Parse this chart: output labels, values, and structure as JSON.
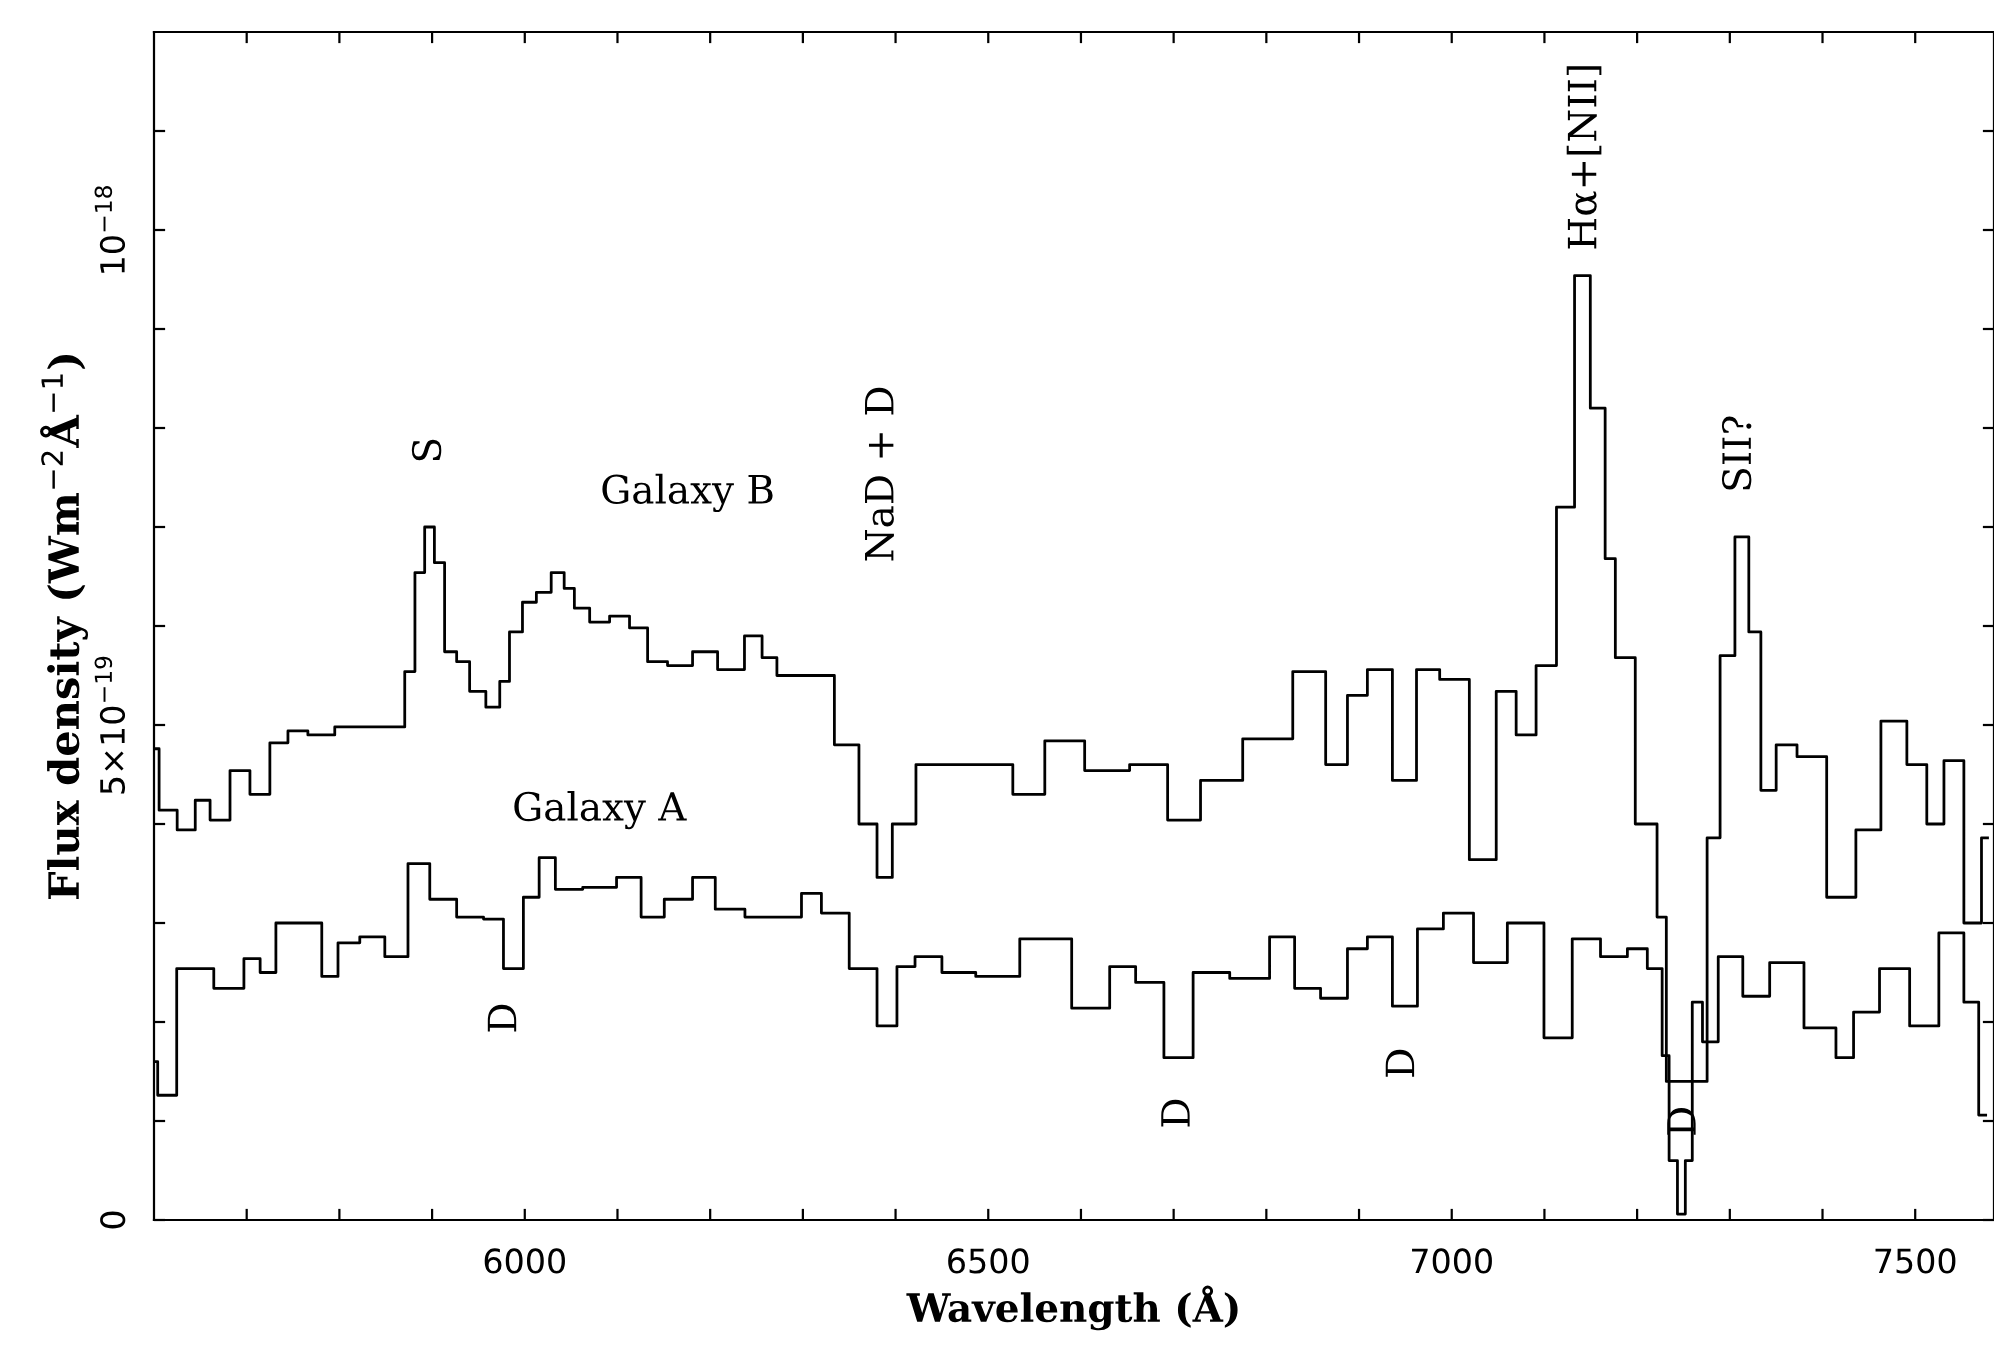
{
  "chart_data": {
    "type": "step",
    "xlabel": "Wavelength (Å)",
    "ylabel": "Flux density (Wm$^{−2}$Å$^{−1}$)",
    "xlim": [
      5600,
      7585
    ],
    "ylim": [
      0,
      1.2e-18
    ],
    "xticks": [
      {
        "value": 5700,
        "label": null
      },
      {
        "value": 5800,
        "label": null
      },
      {
        "value": 5900,
        "label": null
      },
      6000,
      {
        "value": 6100,
        "label": null
      },
      {
        "value": 6200,
        "label": null
      },
      {
        "value": 6300,
        "label": null
      },
      {
        "value": 6400,
        "label": null
      },
      6500,
      {
        "value": 6600,
        "label": null
      },
      {
        "value": 6700,
        "label": null
      },
      {
        "value": 6800,
        "label": null
      },
      {
        "value": 6900,
        "label": null
      },
      7000,
      {
        "value": 7100,
        "label": null
      },
      {
        "value": 7200,
        "label": null
      },
      {
        "value": 7300,
        "label": null
      },
      {
        "value": 7400,
        "label": null
      },
      7500
    ],
    "yticks": [
      {
        "value": 0,
        "label": "0"
      },
      {
        "value": 1e-19,
        "label": null
      },
      {
        "value": 2e-19,
        "label": null
      },
      {
        "value": 3e-19,
        "label": null
      },
      {
        "value": 4e-19,
        "label": null
      },
      {
        "value": 5e-19,
        "label": "5×10$^{−19}$"
      },
      {
        "value": 6e-19,
        "label": null
      },
      {
        "value": 7e-19,
        "label": null
      },
      {
        "value": 8e-19,
        "label": null
      },
      {
        "value": 9e-19,
        "label": null
      },
      {
        "value": 1e-18,
        "label": "10$^{−18}$"
      },
      {
        "value": 1.1e-18,
        "label": null
      }
    ],
    "grid": false,
    "series": [
      {
        "color": "#000000",
        "x": [
          5600,
          5611,
          5639,
          5650,
          5671,
          5693,
          5714,
          5736,
          5753,
          5779,
          5811,
          5865,
          5876,
          5887,
          5897,
          5908,
          5919,
          5934,
          5947,
          5969,
          5977,
          5990,
          6005,
          6020,
          6037,
          6048,
          6059,
          6081,
          6102,
          6124,
          6141,
          6167,
          6195,
          6221,
          6253,
          6259,
          6285,
          6318,
          6350,
          6371,
          6389,
          6404,
          6440,
          6505,
          6548,
          6574,
          6634,
          6671,
          6716,
          6742,
          6807,
          6850,
          6878,
          6897,
          6921,
          6951,
          6973,
          7001,
          7037,
          7059,
          7080,
          7102,
          7124,
          7141,
          7158,
          7173,
          7180,
          7216,
          7227,
          7236,
          7270,
          7281,
          7298,
          7313,
          7328,
          7339,
          7361,
          7384,
          7425,
          7447,
          7479,
          7503,
          7522,
          7540,
          7565,
          7578
        ],
        "values": [
          4.76e-19,
          4.14e-19,
          3.94e-19,
          4.24e-19,
          4.04e-19,
          4.54e-19,
          4.3e-19,
          4.82e-19,
          4.94e-19,
          4.9e-19,
          4.98e-19,
          4.98e-19,
          5.54e-19,
          6.54e-19,
          7e-19,
          6.64e-19,
          5.74e-19,
          5.64e-19,
          5.34e-19,
          5.18e-19,
          5.44e-19,
          5.94e-19,
          6.24e-19,
          6.34e-19,
          6.54e-19,
          6.38e-19,
          6.18e-19,
          6.04e-19,
          6.1e-19,
          5.98e-19,
          5.64e-19,
          5.6e-19,
          5.74e-19,
          5.56e-19,
          5.9e-19,
          5.68e-19,
          5.5e-19,
          5.5e-19,
          4.8e-19,
          4e-19,
          3.46e-19,
          4e-19,
          4.6e-19,
          4.6e-19,
          4.3e-19,
          4.84e-19,
          4.54e-19,
          4.6e-19,
          4.04e-19,
          4.44e-19,
          4.86e-19,
          5.54e-19,
          4.6e-19,
          5.3e-19,
          5.56e-19,
          4.44e-19,
          5.56e-19,
          5.46e-19,
          3.64e-19,
          5.34e-19,
          4.9e-19,
          5.6e-19,
          7.2e-19,
          9.54e-19,
          8.2e-19,
          6.68e-19,
          5.68e-19,
          4e-19,
          3.06e-19,
          1.4e-19,
          1.4e-19,
          3.86e-19,
          5.7e-19,
          6.9e-19,
          5.94e-19,
          4.34e-19,
          4.8e-19,
          4.68e-19,
          3.26e-19,
          3.94e-19,
          5.04e-19,
          4.6e-19,
          4e-19,
          4.64e-19,
          3e-19,
          3.86e-19
        ]
      },
      {
        "color": "#000000",
        "x": [
          5602,
          5606,
          5643,
          5686,
          5708,
          5721,
          5742,
          5772,
          5790,
          5807,
          5837,
          5861,
          5887,
          5908,
          5945,
          5966,
          5988,
          6009,
          6022,
          6044,
          6081,
          6117,
          6134,
          6167,
          6195,
          6216,
          6259,
          6290,
          6307,
          6333,
          6367,
          6393,
          6410,
          6432,
          6468,
          6505,
          6563,
          6617,
          6645,
          6673,
          6706,
          6736,
          6785,
          6822,
          6839,
          6878,
          6897,
          6921,
          6951,
          6975,
          7007,
          7040,
          7080,
          7119,
          7141,
          7180,
          7199,
          7223,
          7231,
          7238,
          7249,
          7255,
          7264,
          7277,
          7298,
          7330,
          7356,
          7404,
          7425,
          7442,
          7481,
          7507,
          7544,
          7561,
          7576
        ],
        "values": [
          1.6e-19,
          1.26e-19,
          2.54e-19,
          2.34e-19,
          2.64e-19,
          2.5e-19,
          3e-19,
          3e-19,
          2.46e-19,
          2.8e-19,
          2.86e-19,
          2.66e-19,
          3.6e-19,
          3.24e-19,
          3.06e-19,
          3.04e-19,
          2.54e-19,
          3.26e-19,
          3.66e-19,
          3.34e-19,
          3.36e-19,
          3.46e-19,
          3.06e-19,
          3.24e-19,
          3.46e-19,
          3.14e-19,
          3.06e-19,
          3.06e-19,
          3.3e-19,
          3.1e-19,
          2.54e-19,
          1.96e-19,
          2.56e-19,
          2.66e-19,
          2.5e-19,
          2.46e-19,
          2.84e-19,
          2.14e-19,
          2.56e-19,
          2.4e-19,
          1.64e-19,
          2.5e-19,
          2.44e-19,
          2.86e-19,
          2.34e-19,
          2.24e-19,
          2.74e-19,
          2.86e-19,
          2.16e-19,
          2.94e-19,
          3.1e-19,
          2.6e-19,
          3e-19,
          1.84e-19,
          2.84e-19,
          2.66e-19,
          2.74e-19,
          2.54e-19,
          1.66e-19,
          6e-20,
          6e-21,
          6e-20,
          2.2e-19,
          1.8e-19,
          2.66e-19,
          2.26e-19,
          2.6e-19,
          1.94e-19,
          1.64e-19,
          2.1e-19,
          2.54e-19,
          1.96e-19,
          2.9e-19,
          2.2e-19,
          1.06e-19
        ]
      }
    ],
    "annotations": [
      "S",
      "Galaxy B",
      "NaD + D",
      "Hα+[NII]",
      "SII?",
      "Galaxy A",
      "D",
      "D",
      "D",
      "D"
    ]
  }
}
